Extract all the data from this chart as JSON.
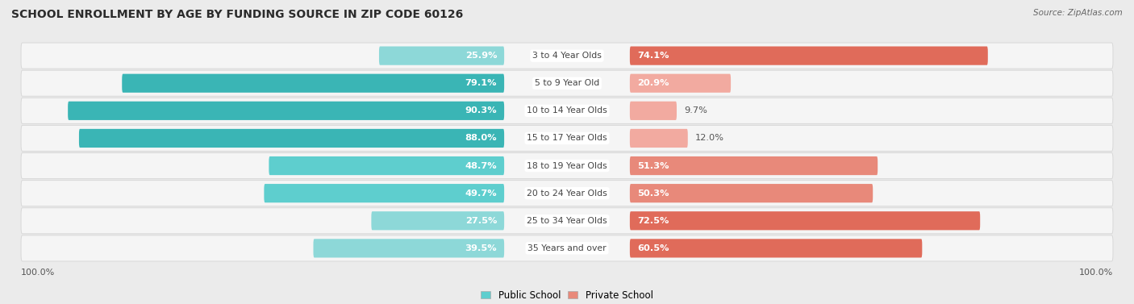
{
  "title": "SCHOOL ENROLLMENT BY AGE BY FUNDING SOURCE IN ZIP CODE 60126",
  "source": "Source: ZipAtlas.com",
  "categories": [
    "3 to 4 Year Olds",
    "5 to 9 Year Old",
    "10 to 14 Year Olds",
    "15 to 17 Year Olds",
    "18 to 19 Year Olds",
    "20 to 24 Year Olds",
    "25 to 34 Year Olds",
    "35 Years and over"
  ],
  "public_pct": [
    25.9,
    79.1,
    90.3,
    88.0,
    48.7,
    49.7,
    27.5,
    39.5
  ],
  "private_pct": [
    74.1,
    20.9,
    9.7,
    12.0,
    51.3,
    50.3,
    72.5,
    60.5
  ],
  "bg_color": "#ebebeb",
  "row_bg_color": "#f5f5f5",
  "row_border_color": "#d8d8d8",
  "title_color": "#2b2b2b",
  "source_color": "#666666",
  "cat_label_color": "#444444",
  "outside_val_color": "#555555",
  "inside_val_color": "#ffffff",
  "axis_label_color": "#555555",
  "legend_public": "Public School",
  "legend_private": "Private School",
  "public_color_dark": "#3ab5b5",
  "public_color_mid": "#5ecece",
  "public_color_light": "#8dd8d8",
  "private_color_dark": "#e06b5a",
  "private_color_mid": "#e8897a",
  "private_color_light": "#f2aaa0",
  "axis_label_left": "100.0%",
  "axis_label_right": "100.0%",
  "max_pct": 100,
  "inside_threshold": 15
}
